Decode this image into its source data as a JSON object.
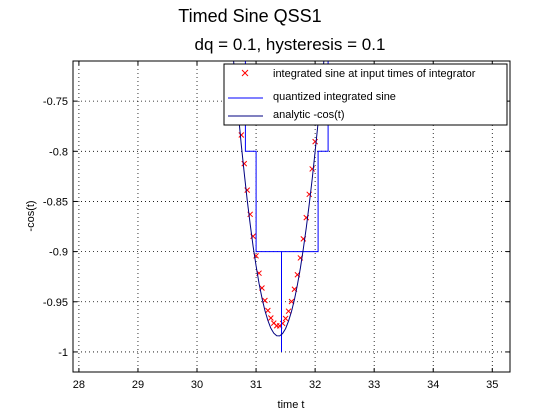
{
  "figure": {
    "title": "Timed Sine QSS1",
    "subtitle": "dq = 0.1, hysteresis = 0.1"
  },
  "chart_data": {
    "type": "line",
    "xlabel": "time t",
    "ylabel": "-cos(t)",
    "xlim": [
      27.9,
      35.3
    ],
    "ylim": [
      -1.02,
      -0.71
    ],
    "xticks": [
      28,
      29,
      30,
      31,
      32,
      33,
      34,
      35
    ],
    "yticks": [
      -0.75,
      -0.8,
      -0.85,
      -0.9,
      -0.95,
      -1
    ],
    "ytick_labels": [
      "-0.75",
      "-0.8",
      "-0.85",
      "-0.9",
      "-0.95",
      "-1"
    ],
    "grid": true,
    "legend_position": "top-right",
    "series": [
      {
        "name": "integrated sine at input times of integrator",
        "style": "markers-x",
        "color": "#ff0000",
        "x": [
          30.6,
          30.65,
          30.7,
          30.75,
          30.8,
          30.85,
          30.9,
          30.95,
          31.0,
          31.05,
          31.1,
          31.15,
          31.2,
          31.25,
          31.3,
          31.35,
          31.4,
          31.45,
          31.5,
          31.55,
          31.6,
          31.65,
          31.7,
          31.75,
          31.8,
          31.85,
          31.9,
          31.95,
          32.0,
          32.05,
          32.1,
          32.15,
          32.2
        ],
        "y": [
          -0.686,
          -0.7206,
          -0.7532,
          -0.7838,
          -0.8123,
          -0.8387,
          -0.8628,
          -0.8847,
          -0.9042,
          -0.9215,
          -0.9363,
          -0.9487,
          -0.9587,
          -0.9662,
          -0.9713,
          -0.9739,
          -0.974,
          -0.9716,
          -0.9667,
          -0.9594,
          -0.9497,
          -0.9375,
          -0.9231,
          -0.9063,
          -0.8873,
          -0.8661,
          -0.8429,
          -0.8176,
          -0.7904,
          -0.7615,
          -0.7308,
          -0.6986,
          -0.665
        ]
      },
      {
        "name": "quantized integrated sine",
        "style": "step",
        "color": "#0000ff",
        "x": [
          30.6,
          30.82,
          30.82,
          31.0,
          31.0,
          31.43,
          31.43,
          31.43,
          31.43,
          31.85,
          31.85,
          32.05,
          32.05,
          32.22,
          32.22,
          32.3
        ],
        "y": [
          -0.7,
          -0.7,
          -0.8,
          -0.8,
          -0.9,
          -0.9,
          -1.0,
          -1.0,
          -0.9,
          -0.9,
          -0.9,
          -0.9,
          -0.8,
          -0.8,
          -0.7,
          -0.7
        ]
      },
      {
        "name": "analytic -cos(t)",
        "style": "line",
        "color": "#000080",
        "x": [
          30.6,
          30.65,
          30.7,
          30.75,
          30.8,
          30.85,
          30.9,
          30.95,
          31.0,
          31.05,
          31.1,
          31.15,
          31.2,
          31.25,
          31.3,
          31.35,
          31.4,
          31.45,
          31.5,
          31.55,
          31.6,
          31.65,
          31.7,
          31.75,
          31.8,
          31.85,
          31.9,
          31.95,
          32.0,
          32.05,
          32.1,
          32.15,
          32.2
        ],
        "y": [
          -0.696,
          -0.7306,
          -0.7632,
          -0.7938,
          -0.8223,
          -0.8487,
          -0.8728,
          -0.8947,
          -0.9142,
          -0.9315,
          -0.9463,
          -0.9587,
          -0.9687,
          -0.9762,
          -0.9813,
          -0.9839,
          -0.984,
          -0.9816,
          -0.9767,
          -0.9694,
          -0.9597,
          -0.9475,
          -0.9331,
          -0.9163,
          -0.8973,
          -0.8761,
          -0.8529,
          -0.8276,
          -0.8004,
          -0.7715,
          -0.7408,
          -0.7086,
          -0.675
        ]
      }
    ]
  }
}
